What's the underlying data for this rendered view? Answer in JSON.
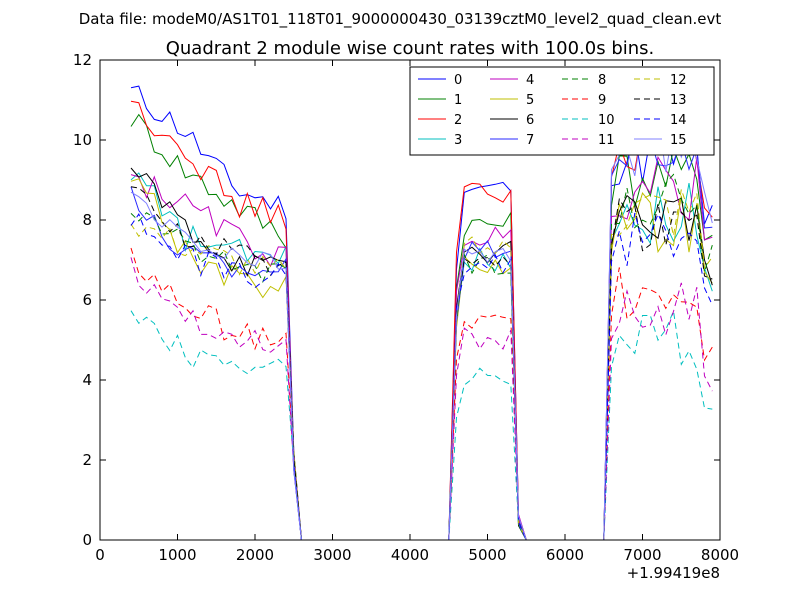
{
  "chart_data": {
    "type": "line",
    "suptitle": "Data file: modeM0/AS1T01_118T01_9000000430_03139cztM0_level2_quad_clean.evt",
    "title": "Quadrant 2 module wise count rates with 100.0s bins.",
    "xlabel": "",
    "ylabel": "",
    "x_offset_label": "+1.99419e8",
    "xlim": [
      0,
      8000
    ],
    "ylim": [
      0,
      12
    ],
    "xticks": [
      0,
      1000,
      2000,
      3000,
      4000,
      5000,
      6000,
      7000,
      8000
    ],
    "yticks": [
      0,
      2,
      4,
      6,
      8,
      10,
      12
    ],
    "legend_position": "top-right",
    "segments": [
      {
        "start": 400,
        "end": 2400,
        "step": 100
      },
      {
        "start": 4600,
        "end": 5300,
        "step": 100
      },
      {
        "start": 6500,
        "end": 7900,
        "step": 100
      }
    ],
    "gap_points": [
      {
        "x": 2500,
        "y": 2.0
      },
      {
        "x": 2600,
        "y": 0
      },
      {
        "x": 4400,
        "y": 0
      },
      {
        "x": 4500,
        "y": 0
      },
      {
        "x": 5400,
        "y": 0.5
      },
      {
        "x": 5500,
        "y": 0
      },
      {
        "x": 6400,
        "y": 0
      }
    ],
    "series": [
      {
        "name": "0",
        "color": "#0000ff",
        "dash": "solid",
        "base": [
          11.2,
          10.3,
          8.8,
          8.3
        ],
        "seg2": 8.8,
        "seg3": 9.6
      },
      {
        "name": "1",
        "color": "#008000",
        "dash": "solid",
        "base": [
          10.6,
          9.3,
          8.4,
          7.6
        ],
        "seg2": 7.9,
        "seg3": 9.1
      },
      {
        "name": "2",
        "color": "#ff0000",
        "dash": "solid",
        "base": [
          10.9,
          9.9,
          8.4,
          8.1
        ],
        "seg2": 8.7,
        "seg3": 9.8
      },
      {
        "name": "3",
        "color": "#00bfbf",
        "dash": "solid",
        "base": [
          9.3,
          7.6,
          7.2,
          7.0
        ],
        "seg2": 7.0,
        "seg3": 8.2
      },
      {
        "name": "4",
        "color": "#bf00bf",
        "dash": "solid",
        "base": [
          9.1,
          8.4,
          7.6,
          7.0
        ],
        "seg2": 7.6,
        "seg3": 8.8
      },
      {
        "name": "5",
        "color": "#bfbf00",
        "dash": "solid",
        "base": [
          9.3,
          7.3,
          6.5,
          6.3
        ],
        "seg2": 6.9,
        "seg3": 7.9
      },
      {
        "name": "6",
        "color": "#000000",
        "dash": "solid",
        "base": [
          9.3,
          7.9,
          7.0,
          6.7
        ],
        "seg2": 7.2,
        "seg3": 8.1
      },
      {
        "name": "7",
        "color": "#2a2aff",
        "dash": "solid",
        "base": [
          8.5,
          7.2,
          6.8,
          6.8
        ],
        "seg2": 7.2,
        "seg3": 9.8
      },
      {
        "name": "8",
        "color": "#008000",
        "dash": "dash",
        "base": [
          8.2,
          7.5,
          6.9,
          6.6
        ],
        "seg2": 6.9,
        "seg3": 8.6
      },
      {
        "name": "9",
        "color": "#ff0000",
        "dash": "dash",
        "base": [
          7.0,
          5.9,
          5.2,
          5.0
        ],
        "seg2": 5.4,
        "seg3": 6.3
      },
      {
        "name": "10",
        "color": "#00bfbf",
        "dash": "dash",
        "base": [
          5.8,
          4.7,
          4.5,
          4.2
        ],
        "seg2": 4.0,
        "seg3": 5.0
      },
      {
        "name": "11",
        "color": "#bf00bf",
        "dash": "dash",
        "base": [
          6.8,
          5.7,
          5.1,
          4.9
        ],
        "seg2": 5.0,
        "seg3": 5.7
      },
      {
        "name": "12",
        "color": "#bfbf00",
        "dash": "dash",
        "base": [
          8.0,
          7.4,
          7.0,
          6.7
        ],
        "seg2": 7.3,
        "seg3": 8.3
      },
      {
        "name": "13",
        "color": "#000000",
        "dash": "dash",
        "base": [
          8.6,
          7.7,
          7.1,
          6.9
        ],
        "seg2": 7.1,
        "seg3": 8.0
      },
      {
        "name": "14",
        "color": "#0000ff",
        "dash": "dash",
        "base": [
          8.0,
          7.1,
          6.7,
          6.6
        ],
        "seg2": 6.9,
        "seg3": 7.6
      },
      {
        "name": "15",
        "color": "#8080ff",
        "dash": "solid",
        "base": [
          8.5,
          7.5,
          7.0,
          6.8
        ],
        "seg2": 7.1,
        "seg3": 9.9
      }
    ]
  }
}
